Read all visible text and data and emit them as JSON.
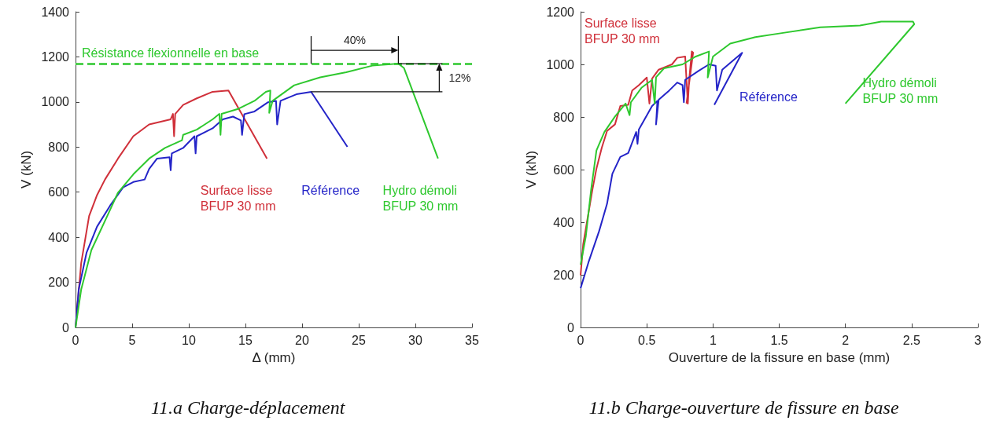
{
  "chart_data": [
    {
      "type": "line",
      "title": "11.a Charge-déplacement",
      "xlabel": "Δ (mm)",
      "ylabel": "V (kN)",
      "xlim": [
        0,
        35
      ],
      "ylim": [
        0,
        1400
      ],
      "xticks": [
        0,
        5,
        10,
        15,
        20,
        25,
        30,
        35
      ],
      "yticks": [
        0,
        200,
        400,
        600,
        800,
        1000,
        1200,
        1400
      ],
      "grid": false,
      "legend": false,
      "marker": "none",
      "line_style": "solid",
      "series": [
        {
          "name": "Surface lisse\nBFUP 30 mm",
          "color": "#d0303a",
          "x": [
            0,
            0.5,
            1.2,
            1.9,
            2.6,
            3.75,
            5.1,
            6.5,
            8.4,
            8.6,
            8.7,
            8.8,
            9.5,
            10.7,
            12.1,
            13.5,
            16.9
          ],
          "values": [
            0,
            285,
            494,
            587,
            656,
            749,
            848,
            900,
            923,
            947,
            848,
            947,
            987,
            1016,
            1045,
            1051,
            749
          ]
        },
        {
          "name": "Référence",
          "color": "#2424c8",
          "x": [
            0,
            0.28,
            0.97,
            1.9,
            3.05,
            4.2,
            5.1,
            6.1,
            6.5,
            7.2,
            8.3,
            8.4,
            8.5,
            9.5,
            10.5,
            10.6,
            10.7,
            12.1,
            13,
            13.9,
            14.6,
            14.7,
            14.9,
            15.8,
            17,
            17.7,
            17.8,
            18.1,
            19.5,
            20.8,
            24
          ],
          "values": [
            0,
            168,
            331,
            447,
            540,
            621,
            645,
            656,
            703,
            749,
            755,
            697,
            772,
            796,
            848,
            772,
            848,
            883,
            923,
            935,
            918,
            854,
            946,
            958,
            999,
            1005,
            900,
            1005,
            1034,
            1045,
            801
          ]
        },
        {
          "name": "Hydro démoli\nBFUP 30 mm",
          "color": "#2ec82e",
          "x": [
            0,
            0.5,
            1.4,
            2.8,
            3.75,
            5.1,
            6.5,
            7.9,
            9.4,
            9.5,
            10.7,
            12.1,
            12.7,
            12.8,
            12.9,
            14.4,
            15.8,
            16.8,
            17.2,
            17.1,
            17.4,
            19.3,
            21.6,
            23.9,
            26.2,
            28.5,
            29,
            32
          ],
          "values": [
            0,
            168,
            343,
            494,
            598,
            679,
            749,
            796,
            830,
            854,
            877,
            923,
            947,
            854,
            947,
            970,
            1005,
            1045,
            1051,
            952,
            1005,
            1074,
            1109,
            1132,
            1161,
            1170,
            1150,
            749
          ]
        }
      ],
      "ref_lines": [
        {
          "axis": "y",
          "value": 1170,
          "label": "Résistance flexionnelle en base",
          "color": "#2ec82e",
          "line_style": "dashed"
        }
      ],
      "annotations": [
        "40%",
        {
          "text": "12%",
          "x": 28.5,
          "y": 1170
        }
      ]
    },
    {
      "type": "line",
      "title": "11.b Charge-ouverture de fissure en base",
      "xlabel": "Ouverture de la fissure en base (mm)",
      "ylabel": "V (kN)",
      "xlim": [
        0,
        3
      ],
      "ylim": [
        0,
        1200
      ],
      "xticks": [
        0,
        0.5,
        1,
        1.5,
        2,
        2.5,
        3
      ],
      "yticks": [
        0,
        200,
        400,
        600,
        800,
        1000,
        1200
      ],
      "grid": false,
      "legend": false,
      "marker": "none",
      "line_style": "solid",
      "series": [
        {
          "name": "Surface lisse\nBFUP 30 mm",
          "color": "#d0303a",
          "x": [
            0,
            0.02,
            0.09,
            0.12,
            0.16,
            0.2,
            0.26,
            0.3,
            0.36,
            0.39,
            0.44,
            0.5,
            0.52,
            0.54,
            0.59,
            0.69,
            0.73,
            0.79,
            0.81,
            0.82,
            0.84,
            0.85,
            0.8
          ],
          "values": [
            198,
            317,
            525,
            604,
            683,
            747,
            772,
            842,
            846,
            901,
            921,
            950,
            851,
            946,
            980,
            1000,
            1025,
            1030,
            851,
            941,
            1049,
            1045,
            851
          ]
        },
        {
          "name": "Référence",
          "color": "#2424c8",
          "x": [
            0,
            0.06,
            0.14,
            0.2,
            0.24,
            0.3,
            0.36,
            0.42,
            0.43,
            0.44,
            0.54,
            0.58,
            0.57,
            0.59,
            0.67,
            0.73,
            0.77,
            0.78,
            0.79,
            0.89,
            0.97,
            1.02,
            1.03,
            1.07,
            1.22,
            1.01
          ],
          "values": [
            149,
            248,
            366,
            470,
            584,
            648,
            663,
            743,
            698,
            752,
            842,
            861,
            772,
            866,
            901,
            931,
            921,
            856,
            941,
            975,
            1000,
            995,
            901,
            980,
            1044,
            846
          ]
        },
        {
          "name": "Hydro démoli\nBFUP 30 mm",
          "color": "#2ec82e",
          "x": [
            0,
            0.04,
            0.08,
            0.12,
            0.18,
            0.26,
            0.34,
            0.37,
            0.38,
            0.46,
            0.54,
            0.56,
            0.57,
            0.63,
            0.77,
            0.87,
            0.97,
            0.96,
            1,
            1.13,
            1.32,
            1.52,
            1.81,
            2.11,
            2.27,
            2.51,
            2.52,
            2
          ],
          "values": [
            238,
            347,
            525,
            673,
            743,
            802,
            851,
            807,
            856,
            911,
            941,
            851,
            951,
            985,
            1000,
            1030,
            1049,
            950,
            1030,
            1079,
            1104,
            1119,
            1141,
            1148,
            1163,
            1163,
            1153,
            851
          ]
        }
      ]
    }
  ]
}
